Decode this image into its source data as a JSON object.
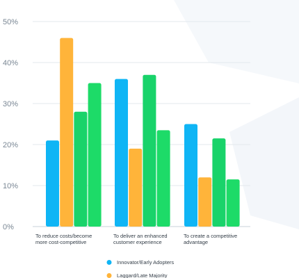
{
  "chart_data": {
    "type": "bar",
    "categories": [
      [
        "To reduce costs/become",
        "more cost-competitive"
      ],
      [
        "To deliver an enhanced",
        "customer experience"
      ],
      [
        "To create a competitive",
        "advantage"
      ]
    ],
    "series": [
      {
        "name": "Innovator/Early Adopters",
        "color": "#0fb5f5",
        "values": [
          21,
          36,
          25
        ]
      },
      {
        "name": "Laggard/Late Majority",
        "color": "#ffb43a",
        "values": [
          46,
          19,
          12
        ]
      },
      {
        "name": "",
        "color": "#19d36a",
        "values": [
          28,
          37,
          21.5
        ]
      },
      {
        "name": "",
        "color": "#1ddb68",
        "values": [
          35,
          23.5,
          11.5
        ]
      }
    ],
    "yticks": [
      "0%",
      "10%",
      "20%",
      "30%",
      "40%",
      "50%"
    ],
    "ylim": [
      0,
      50
    ],
    "grid": true,
    "legend_position": "bottom-center"
  }
}
